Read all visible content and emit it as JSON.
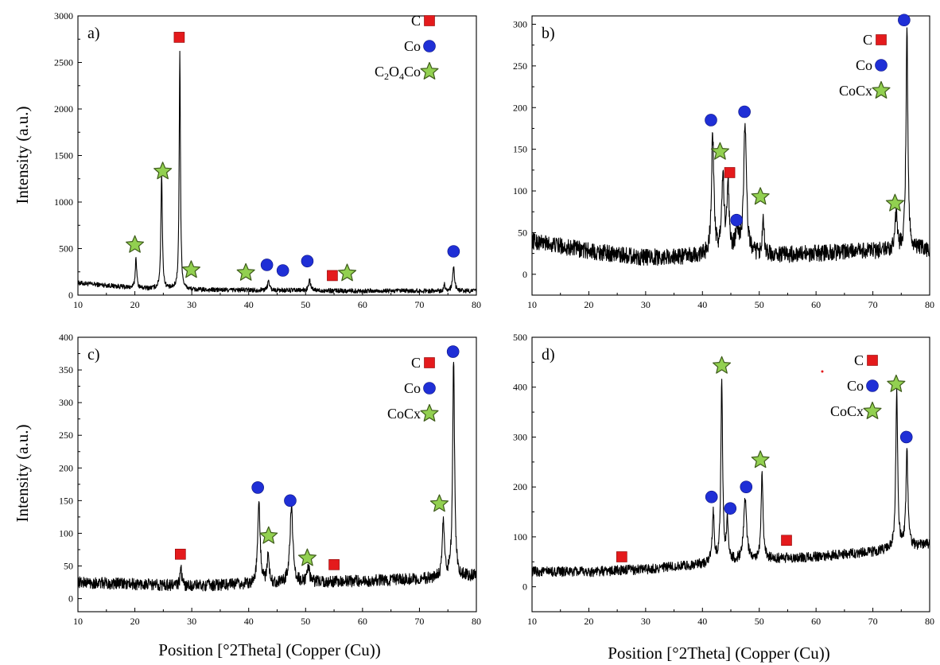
{
  "figure": {
    "ylabel": "Intensity (a.u.)",
    "xlabel": "Position [°2Theta] (Copper (Cu))"
  },
  "chart_data": [
    {
      "type": "line",
      "panel_label": "a)",
      "xlim": [
        10,
        80
      ],
      "ylim": [
        0,
        3000
      ],
      "xticks": [
        10,
        20,
        30,
        40,
        50,
        60,
        70,
        80
      ],
      "yticks": [
        0,
        500,
        1000,
        1500,
        2000,
        2500,
        3000
      ],
      "baseline": [
        [
          10,
          130
        ],
        [
          15,
          105
        ],
        [
          20,
          75
        ],
        [
          30,
          55
        ],
        [
          40,
          55
        ],
        [
          50,
          50
        ],
        [
          60,
          45
        ],
        [
          70,
          45
        ],
        [
          80,
          45
        ]
      ],
      "noise": 25,
      "peaks": [
        {
          "x": 20.2,
          "h": 330,
          "w": 0.15
        },
        {
          "x": 24.7,
          "h": 1250,
          "w": 0.15
        },
        {
          "x": 27.9,
          "h": 2560,
          "w": 0.13
        },
        {
          "x": 43.5,
          "h": 100,
          "w": 0.2
        },
        {
          "x": 50.7,
          "h": 110,
          "w": 0.2
        },
        {
          "x": 74.4,
          "h": 75,
          "w": 0.15
        },
        {
          "x": 76.0,
          "h": 250,
          "w": 0.2
        }
      ],
      "markers": [
        {
          "phase": "C",
          "x": 27.8,
          "y": 2770
        },
        {
          "phase": "C",
          "x": 54.7,
          "y": 210
        },
        {
          "phase": "Co",
          "x": 43.2,
          "y": 325
        },
        {
          "phase": "Co",
          "x": 46.0,
          "y": 265
        },
        {
          "phase": "Co",
          "x": 50.3,
          "y": 365
        },
        {
          "phase": "Co",
          "x": 76.0,
          "y": 470
        },
        {
          "phase": "C2O4Co",
          "x": 20.0,
          "y": 540
        },
        {
          "phase": "C2O4Co",
          "x": 24.9,
          "y": 1330
        },
        {
          "phase": "C2O4Co",
          "x": 29.9,
          "y": 270
        },
        {
          "phase": "C2O4Co",
          "x": 39.5,
          "y": 240
        },
        {
          "phase": "C2O4Co",
          "x": 57.3,
          "y": 235
        }
      ],
      "legend": [
        {
          "label": "C",
          "phase": "C"
        },
        {
          "label": "Co",
          "phase": "Co"
        },
        {
          "label": "C2O4Co",
          "phase": "C2O4Co",
          "formula": [
            "C",
            "2",
            "O",
            "4",
            "Co"
          ]
        }
      ]
    },
    {
      "type": "line",
      "panel_label": "b)",
      "xlim": [
        10,
        80
      ],
      "ylim": [
        -25,
        310
      ],
      "xticks": [
        10,
        20,
        30,
        40,
        50,
        60,
        70,
        80
      ],
      "yticks": [
        0,
        50,
        100,
        150,
        200,
        250,
        300
      ],
      "baseline": [
        [
          10,
          40
        ],
        [
          20,
          28
        ],
        [
          30,
          20
        ],
        [
          40,
          22
        ],
        [
          45,
          25
        ],
        [
          50,
          22
        ],
        [
          60,
          25
        ],
        [
          70,
          28
        ],
        [
          80,
          30
        ]
      ],
      "noise": 10,
      "peaks": [
        {
          "x": 41.8,
          "h": 143,
          "w": 0.25
        },
        {
          "x": 43.6,
          "h": 92,
          "w": 0.25
        },
        {
          "x": 44.5,
          "h": 85,
          "w": 0.2
        },
        {
          "x": 46.1,
          "h": 30,
          "w": 0.3
        },
        {
          "x": 47.5,
          "h": 152,
          "w": 0.3
        },
        {
          "x": 50.7,
          "h": 48,
          "w": 0.2
        },
        {
          "x": 74.1,
          "h": 42,
          "w": 0.2
        },
        {
          "x": 76.0,
          "h": 262,
          "w": 0.2
        }
      ],
      "markers": [
        {
          "phase": "C",
          "x": 44.8,
          "y": 122
        },
        {
          "phase": "Co",
          "x": 41.5,
          "y": 185
        },
        {
          "phase": "Co",
          "x": 47.4,
          "y": 195
        },
        {
          "phase": "Co",
          "x": 46.0,
          "y": 65
        },
        {
          "phase": "Co",
          "x": 75.5,
          "y": 305
        },
        {
          "phase": "CoCx",
          "x": 43.1,
          "y": 147
        },
        {
          "phase": "CoCx",
          "x": 50.2,
          "y": 93
        },
        {
          "phase": "CoCx",
          "x": 73.9,
          "y": 85
        }
      ],
      "legend": [
        {
          "label": "C",
          "phase": "C"
        },
        {
          "label": "Co",
          "phase": "Co"
        },
        {
          "label": "CoCx",
          "phase": "CoCx"
        }
      ]
    },
    {
      "type": "line",
      "panel_label": "c)",
      "xlim": [
        10,
        80
      ],
      "ylim": [
        -20,
        400
      ],
      "xticks": [
        10,
        20,
        30,
        40,
        50,
        60,
        70,
        80
      ],
      "yticks": [
        0,
        50,
        100,
        150,
        200,
        250,
        300,
        350,
        400
      ],
      "baseline": [
        [
          10,
          25
        ],
        [
          20,
          22
        ],
        [
          30,
          20
        ],
        [
          40,
          22
        ],
        [
          50,
          25
        ],
        [
          60,
          27
        ],
        [
          70,
          30
        ],
        [
          80,
          35
        ]
      ],
      "noise": 9,
      "peaks": [
        {
          "x": 28.1,
          "h": 28,
          "w": 0.15
        },
        {
          "x": 41.8,
          "h": 125,
          "w": 0.25
        },
        {
          "x": 43.4,
          "h": 45,
          "w": 0.2
        },
        {
          "x": 47.5,
          "h": 118,
          "w": 0.3
        },
        {
          "x": 50.5,
          "h": 25,
          "w": 0.2
        },
        {
          "x": 74.2,
          "h": 90,
          "w": 0.2
        },
        {
          "x": 76.0,
          "h": 335,
          "w": 0.2
        }
      ],
      "markers": [
        {
          "phase": "C",
          "x": 28.0,
          "y": 68
        },
        {
          "phase": "C",
          "x": 55.0,
          "y": 52
        },
        {
          "phase": "Co",
          "x": 41.6,
          "y": 170
        },
        {
          "phase": "Co",
          "x": 47.3,
          "y": 150
        },
        {
          "phase": "Co",
          "x": 75.9,
          "y": 378
        },
        {
          "phase": "CoCx",
          "x": 43.5,
          "y": 96
        },
        {
          "phase": "CoCx",
          "x": 50.3,
          "y": 62
        },
        {
          "phase": "CoCx",
          "x": 73.5,
          "y": 145
        }
      ],
      "legend": [
        {
          "label": "C",
          "phase": "C"
        },
        {
          "label": "Co",
          "phase": "Co"
        },
        {
          "label": "CoCx",
          "phase": "CoCx"
        }
      ]
    },
    {
      "type": "line",
      "panel_label": "d)",
      "xlim": [
        10,
        80
      ],
      "ylim": [
        -50,
        500
      ],
      "xticks": [
        10,
        20,
        30,
        40,
        50,
        60,
        70,
        80
      ],
      "yticks": [
        0,
        100,
        200,
        300,
        400,
        500
      ],
      "baseline": [
        [
          10,
          30
        ],
        [
          20,
          30
        ],
        [
          30,
          35
        ],
        [
          40,
          45
        ],
        [
          50,
          55
        ],
        [
          60,
          60
        ],
        [
          70,
          70
        ],
        [
          80,
          85
        ]
      ],
      "noise": 10,
      "peaks": [
        {
          "x": 41.9,
          "h": 100,
          "w": 0.2
        },
        {
          "x": 43.4,
          "h": 370,
          "w": 0.18
        },
        {
          "x": 44.4,
          "h": 80,
          "w": 0.2
        },
        {
          "x": 47.5,
          "h": 125,
          "w": 0.3
        },
        {
          "x": 50.5,
          "h": 175,
          "w": 0.2
        },
        {
          "x": 74.2,
          "h": 310,
          "w": 0.2
        },
        {
          "x": 76.0,
          "h": 195,
          "w": 0.2
        }
      ],
      "markers": [
        {
          "phase": "C",
          "x": 25.8,
          "y": 60
        },
        {
          "phase": "C",
          "x": 54.8,
          "y": 93
        },
        {
          "phase": "Co",
          "x": 41.6,
          "y": 180
        },
        {
          "phase": "Co",
          "x": 44.9,
          "y": 157
        },
        {
          "phase": "Co",
          "x": 47.7,
          "y": 200
        },
        {
          "phase": "Co",
          "x": 75.9,
          "y": 300
        },
        {
          "phase": "CoCx",
          "x": 43.4,
          "y": 443
        },
        {
          "phase": "CoCx",
          "x": 50.2,
          "y": 254
        },
        {
          "phase": "CoCx",
          "x": 74.1,
          "y": 406
        }
      ],
      "legend": [
        {
          "label": "C",
          "phase": "C"
        },
        {
          "label": "Co",
          "phase": "Co"
        },
        {
          "label": "CoCx",
          "phase": "CoCx"
        }
      ]
    }
  ],
  "colors": {
    "line": "#000000",
    "C": "#e41a1c",
    "Co": "#1f2fd6",
    "star": "#92d050",
    "star_edge": "#3d5a1a"
  }
}
